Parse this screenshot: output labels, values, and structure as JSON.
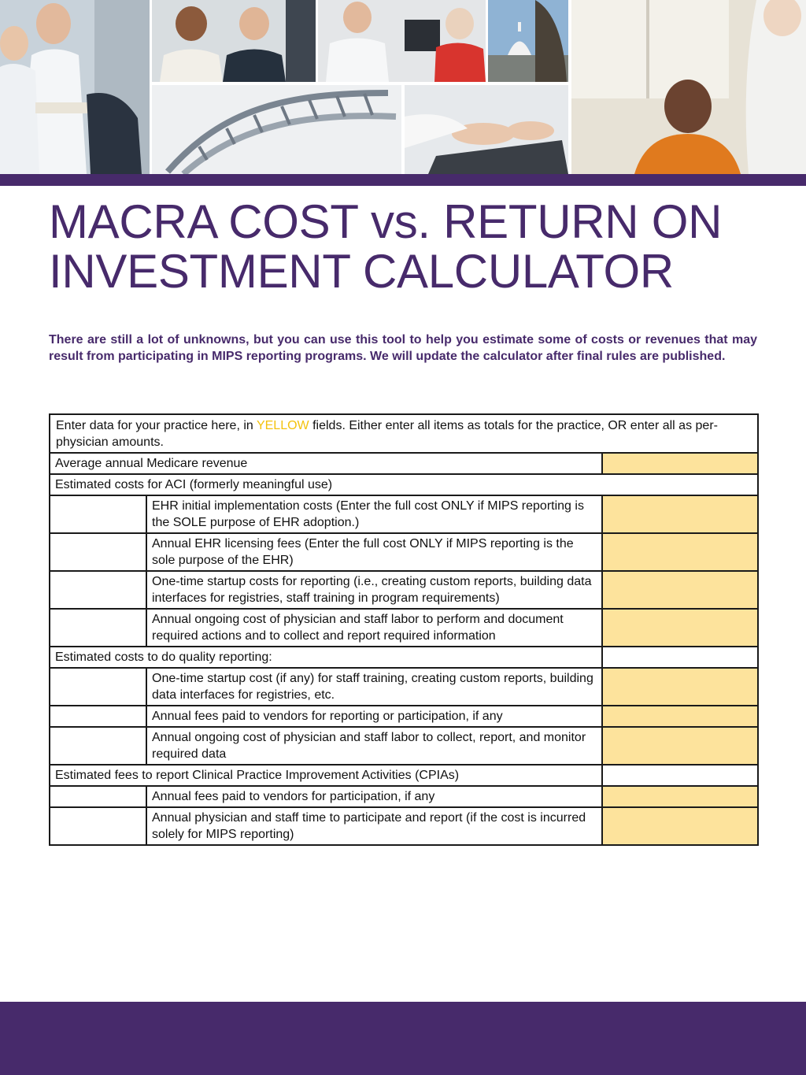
{
  "document": {
    "title_line1": "MACRA COST vs. RETURN ON",
    "title_line2": "INVESTMENT CALCULATOR",
    "intro": "There are still a lot of unknowns, but you can use this tool to help you estimate some of costs or revenues that may result from participating in MIPS reporting programs.  We will update the calculator after final rules are published."
  },
  "colors": {
    "brand_purple": "#472a6b",
    "input_yellow": "#fde39c",
    "highlight_yellow": "#f4c20d"
  },
  "table": {
    "instructions_pre": "Enter data for your practice here, in ",
    "instructions_highlight": "YELLOW",
    "instructions_post": " fields.  Either enter all items as totals for the practice, OR enter all as per-physician amounts.",
    "revenue_label": "Average annual Medicare revenue",
    "aci_heading": "Estimated costs for ACI (formerly meaningful use)",
    "aci_items": [
      "EHR initial implementation costs (Enter the full cost ONLY if MIPS reporting is the SOLE purpose of EHR adoption.)",
      "Annual EHR licensing fees (Enter the full cost ONLY if MIPS reporting is the sole purpose of the EHR)",
      "One-time startup costs for reporting (i.e., creating custom reports, building data interfaces for registries, staff training in program requirements)",
      "Annual ongoing cost of physician and staff labor to perform and document required actions and to collect and report required information"
    ],
    "quality_heading": "Estimated costs to do quality reporting:",
    "quality_items": [
      "One-time startup cost (if any) for staff training, creating custom reports, building data interfaces for registries, etc.",
      "Annual fees paid to vendors for reporting or participation, if any",
      "Annual ongoing cost of physician and staff labor to collect, report, and monitor required data"
    ],
    "cpia_heading": "Estimated fees to report Clinical Practice Improvement Activities (CPIAs)",
    "cpia_items": [
      "Annual fees paid to vendors for participation, if any",
      "Annual physician and staff time to participate and report (if the cost is incurred solely for MIPS reporting)"
    ]
  }
}
